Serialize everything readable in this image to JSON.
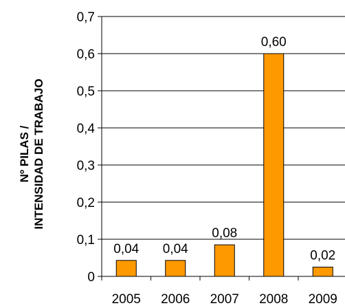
{
  "chart_data": {
    "type": "bar",
    "categories": [
      "2005",
      "2006",
      "2007",
      "2008",
      "2009"
    ],
    "values": [
      0.043,
      0.043,
      0.085,
      0.6,
      0.025
    ],
    "data_labels": [
      "0,04",
      "0,04",
      "0,08",
      "0,60",
      "0,02"
    ],
    "title": "",
    "xlabel": "",
    "ylabel_lines": [
      "Nº PILAS /",
      "INTENSIDAD DE TRABAJO"
    ],
    "ylim": [
      0,
      0.7
    ],
    "yticks": [
      0,
      0.1,
      0.2,
      0.3,
      0.4,
      0.5,
      0.6,
      0.7
    ],
    "ytick_labels": [
      "0",
      "0,1",
      "0,2",
      "0,3",
      "0,4",
      "0,5",
      "0,6",
      "0,7"
    ],
    "grid": "horizontal",
    "legend": "none",
    "colors": {
      "bar_fill": "#FF9900",
      "bar_stroke": "#000000",
      "grid": "#000000",
      "axis": "#000000"
    }
  }
}
